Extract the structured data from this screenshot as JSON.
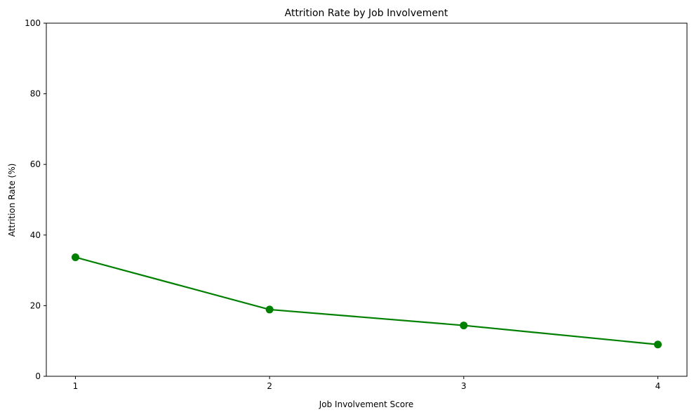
{
  "chart_data": {
    "type": "line",
    "title": "Attrition Rate by Job Involvement",
    "xlabel": "Job Involvement Score",
    "ylabel": "Attrition Rate (%)",
    "x": [
      1,
      2,
      3,
      4
    ],
    "x_ticks": [
      "1",
      "2",
      "3",
      "4"
    ],
    "y_ticks": [
      "0",
      "20",
      "40",
      "60",
      "80",
      "100"
    ],
    "ylim": [
      0,
      100
    ],
    "xlim": [
      0.85,
      4.15
    ],
    "grid": false,
    "series": [
      {
        "values": [
          33.7,
          18.9,
          14.4,
          9.0
        ],
        "color": "#008000",
        "marker": "circle"
      }
    ]
  }
}
